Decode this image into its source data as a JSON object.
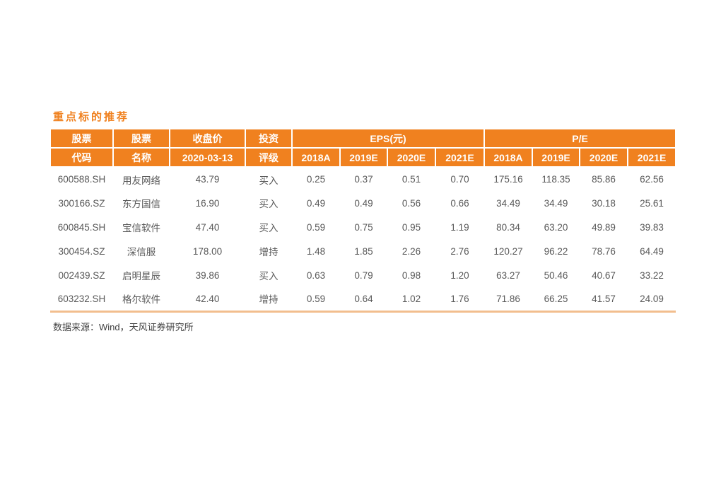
{
  "page": {
    "title": "重点标的推荐",
    "source_note": "数据来源：Wind，天风证券研究所"
  },
  "colors": {
    "accent": "#F0811F",
    "table_bottom_border": "#F2BE8E",
    "header_text": "#FFFFFF",
    "body_text": "#595959",
    "footer_text": "#3F3F3F"
  },
  "table": {
    "group_headers": {
      "eps": "EPS(元)",
      "pe": "P/E"
    },
    "header_row1": [
      "股票",
      "股票",
      "收盘价",
      "投资"
    ],
    "header_row2": [
      "代码",
      "名称",
      "2020-03-13",
      "评级",
      "2018A",
      "2019E",
      "2020E",
      "2021E",
      "2018A",
      "2019E",
      "2020E",
      "2021E"
    ],
    "rows": [
      [
        "600588.SH",
        "用友网络",
        "43.79",
        "买入",
        "0.25",
        "0.37",
        "0.51",
        "0.70",
        "175.16",
        "118.35",
        "85.86",
        "62.56"
      ],
      [
        "300166.SZ",
        "东方国信",
        "16.90",
        "买入",
        "0.49",
        "0.49",
        "0.56",
        "0.66",
        "34.49",
        "34.49",
        "30.18",
        "25.61"
      ],
      [
        "600845.SH",
        "宝信软件",
        "47.40",
        "买入",
        "0.59",
        "0.75",
        "0.95",
        "1.19",
        "80.34",
        "63.20",
        "49.89",
        "39.83"
      ],
      [
        "300454.SZ",
        "深信服",
        "178.00",
        "增持",
        "1.48",
        "1.85",
        "2.26",
        "2.76",
        "120.27",
        "96.22",
        "78.76",
        "64.49"
      ],
      [
        "002439.SZ",
        "启明星辰",
        "39.86",
        "买入",
        "0.63",
        "0.79",
        "0.98",
        "1.20",
        "63.27",
        "50.46",
        "40.67",
        "33.22"
      ],
      [
        "603232.SH",
        "格尔软件",
        "42.40",
        "增持",
        "0.59",
        "0.64",
        "1.02",
        "1.76",
        "71.86",
        "66.25",
        "41.57",
        "24.09"
      ]
    ]
  }
}
